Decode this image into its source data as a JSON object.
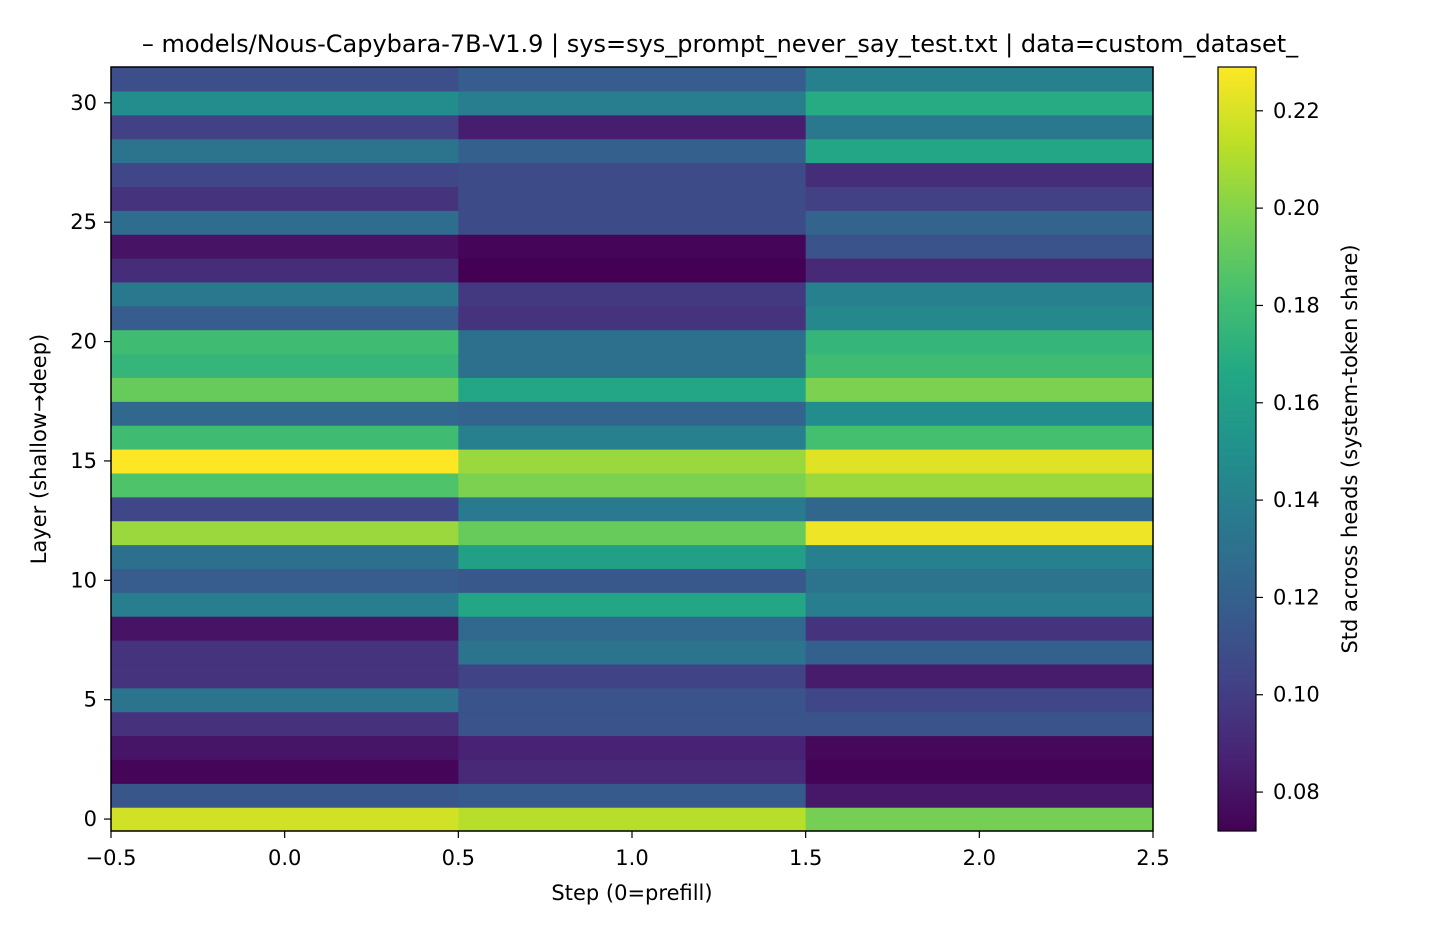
{
  "chart_data": {
    "type": "heatmap",
    "title": "– models/Nous-Capybara-7B-V1.9 | sys=sys_prompt_never_say_test.txt | data=custom_dataset_",
    "xlabel": "Step (0=prefill)",
    "ylabel": "Layer (shallow→deep)",
    "colorbar_label": "Std across heads (system-token share)",
    "colormap": "viridis",
    "x_categories": [
      0,
      1,
      2
    ],
    "xlim": [
      -0.5,
      2.5
    ],
    "ylim": [
      -0.5,
      31.5
    ],
    "clim": [
      0.072,
      0.229
    ],
    "x_ticks": [
      "−0.5",
      "0.0",
      "0.5",
      "1.0",
      "1.5",
      "2.0",
      "2.5"
    ],
    "y_ticks": [
      "0",
      "5",
      "10",
      "15",
      "20",
      "25",
      "30"
    ],
    "colorbar_ticks": [
      "0.08",
      "0.10",
      "0.12",
      "0.14",
      "0.16",
      "0.18",
      "0.20",
      "0.22"
    ],
    "layers": [
      0,
      1,
      2,
      3,
      4,
      5,
      6,
      7,
      8,
      9,
      10,
      11,
      12,
      13,
      14,
      15,
      16,
      17,
      18,
      19,
      20,
      21,
      22,
      23,
      24,
      25,
      26,
      27,
      28,
      29,
      30,
      31
    ],
    "values": [
      [
        0.218,
        0.212,
        0.196
      ],
      [
        0.114,
        0.116,
        0.082
      ],
      [
        0.074,
        0.09,
        0.073
      ],
      [
        0.081,
        0.087,
        0.075
      ],
      [
        0.094,
        0.112,
        0.112
      ],
      [
        0.132,
        0.112,
        0.105
      ],
      [
        0.095,
        0.103,
        0.084
      ],
      [
        0.095,
        0.132,
        0.12
      ],
      [
        0.08,
        0.125,
        0.095
      ],
      [
        0.138,
        0.165,
        0.138
      ],
      [
        0.118,
        0.115,
        0.132
      ],
      [
        0.13,
        0.16,
        0.14
      ],
      [
        0.205,
        0.192,
        0.225
      ],
      [
        0.105,
        0.136,
        0.124
      ],
      [
        0.185,
        0.198,
        0.205
      ],
      [
        0.229,
        0.205,
        0.222
      ],
      [
        0.18,
        0.14,
        0.182
      ],
      [
        0.125,
        0.122,
        0.148
      ],
      [
        0.192,
        0.165,
        0.198
      ],
      [
        0.175,
        0.13,
        0.18
      ],
      [
        0.18,
        0.13,
        0.175
      ],
      [
        0.118,
        0.095,
        0.145
      ],
      [
        0.135,
        0.098,
        0.14
      ],
      [
        0.092,
        0.072,
        0.09
      ],
      [
        0.08,
        0.074,
        0.112
      ],
      [
        0.128,
        0.108,
        0.122
      ],
      [
        0.095,
        0.108,
        0.102
      ],
      [
        0.105,
        0.108,
        0.092
      ],
      [
        0.132,
        0.12,
        0.165
      ],
      [
        0.102,
        0.085,
        0.135
      ],
      [
        0.148,
        0.138,
        0.168
      ],
      [
        0.11,
        0.118,
        0.14
      ]
    ]
  }
}
